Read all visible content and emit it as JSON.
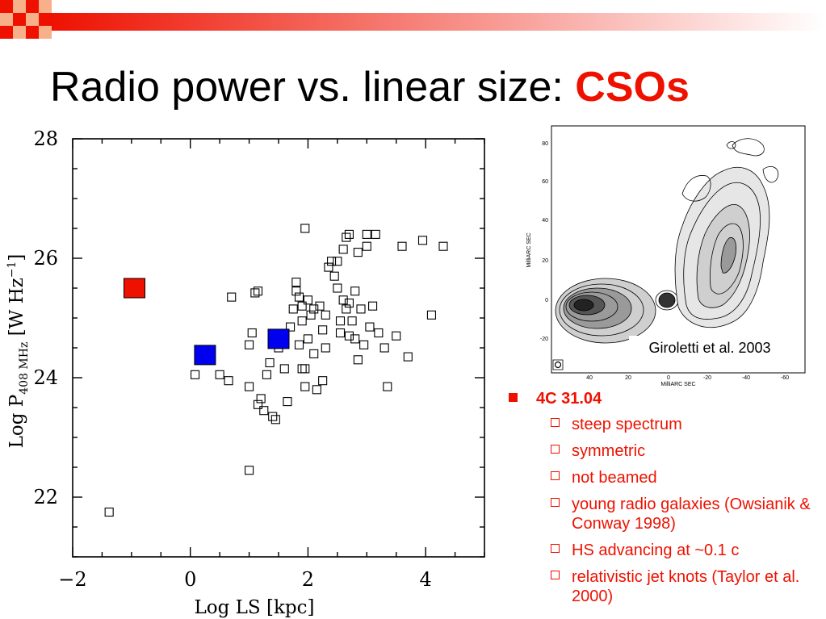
{
  "slide": {
    "title_main": "Radio power vs. linear size: ",
    "title_accent": "CSOs"
  },
  "colors": {
    "accent": "#ee1100",
    "red_marker": "#ee1100",
    "blue_marker": "#0000ee"
  },
  "chart_data": {
    "type": "scatter",
    "title": "",
    "xlabel": "Log LS [kpc]",
    "ylabel": "Log P",
    "ylabel_sub": "408 MHz",
    "ylabel_units": "[W Hz",
    "ylabel_units_sup": "−1",
    "ylabel_units_end": "]",
    "xlim": [
      -2,
      5
    ],
    "ylim": [
      21,
      28
    ],
    "xticks": [
      -2,
      0,
      2,
      4
    ],
    "xtick_labels": [
      "−2",
      "0",
      "2",
      "4"
    ],
    "yticks": [
      22,
      24,
      26,
      28
    ],
    "ytick_labels": [
      "22",
      "24",
      "26",
      "28"
    ],
    "grid": false,
    "series": [
      {
        "marker": "open-square",
        "points": [
          [
            -1.38,
            21.75
          ],
          [
            0.08,
            24.05
          ],
          [
            0.5,
            24.05
          ],
          [
            0.65,
            23.95
          ],
          [
            0.7,
            25.35
          ],
          [
            1.0,
            23.85
          ],
          [
            1.0,
            22.45
          ],
          [
            1.0,
            24.55
          ],
          [
            1.05,
            24.75
          ],
          [
            1.1,
            25.42
          ],
          [
            1.15,
            25.45
          ],
          [
            1.15,
            23.55
          ],
          [
            1.2,
            23.65
          ],
          [
            1.25,
            23.45
          ],
          [
            1.3,
            24.05
          ],
          [
            1.35,
            24.25
          ],
          [
            1.4,
            23.35
          ],
          [
            1.45,
            23.3
          ],
          [
            1.5,
            24.5
          ],
          [
            1.55,
            24.65
          ],
          [
            1.6,
            24.15
          ],
          [
            1.65,
            23.6
          ],
          [
            1.7,
            24.85
          ],
          [
            1.75,
            25.15
          ],
          [
            1.8,
            25.6
          ],
          [
            1.8,
            25.45
          ],
          [
            1.85,
            25.35
          ],
          [
            1.85,
            24.55
          ],
          [
            1.9,
            25.2
          ],
          [
            1.9,
            24.95
          ],
          [
            1.9,
            24.15
          ],
          [
            1.95,
            23.85
          ],
          [
            1.95,
            24.15
          ],
          [
            2.0,
            25.3
          ],
          [
            2.0,
            24.65
          ],
          [
            2.05,
            25.05
          ],
          [
            2.1,
            25.15
          ],
          [
            2.1,
            24.4
          ],
          [
            2.15,
            23.8
          ],
          [
            2.2,
            25.2
          ],
          [
            2.25,
            24.8
          ],
          [
            2.3,
            25.05
          ],
          [
            2.3,
            24.5
          ],
          [
            2.35,
            25.85
          ],
          [
            2.4,
            25.95
          ],
          [
            2.45,
            25.7
          ],
          [
            2.5,
            25.95
          ],
          [
            2.5,
            25.5
          ],
          [
            2.55,
            24.95
          ],
          [
            2.55,
            24.75
          ],
          [
            2.6,
            25.3
          ],
          [
            2.6,
            26.15
          ],
          [
            2.65,
            26.35
          ],
          [
            2.65,
            25.15
          ],
          [
            2.7,
            26.4
          ],
          [
            2.7,
            25.25
          ],
          [
            2.7,
            24.7
          ],
          [
            2.75,
            24.95
          ],
          [
            2.8,
            25.45
          ],
          [
            2.8,
            24.65
          ],
          [
            2.85,
            26.1
          ],
          [
            2.85,
            24.3
          ],
          [
            2.9,
            25.15
          ],
          [
            2.95,
            24.55
          ],
          [
            3.0,
            26.2
          ],
          [
            3.0,
            26.4
          ],
          [
            3.05,
            24.85
          ],
          [
            3.1,
            25.2
          ],
          [
            3.15,
            26.4
          ],
          [
            3.2,
            24.75
          ],
          [
            3.3,
            24.5
          ],
          [
            3.35,
            23.85
          ],
          [
            3.5,
            24.7
          ],
          [
            3.6,
            26.2
          ],
          [
            3.7,
            24.35
          ],
          [
            3.95,
            26.3
          ],
          [
            1.95,
            26.5
          ],
          [
            4.1,
            25.05
          ],
          [
            4.3,
            26.2
          ],
          [
            2.25,
            23.95
          ]
        ]
      },
      {
        "marker": "filled-square",
        "color": "red",
        "points": [
          [
            -0.95,
            25.5
          ]
        ]
      },
      {
        "marker": "filled-square",
        "color": "blue",
        "points": [
          [
            0.25,
            24.38
          ],
          [
            1.5,
            24.65
          ]
        ]
      }
    ]
  },
  "inset_image": {
    "caption": "Giroletti et al. 2003",
    "xlabel": "MilliARC SEC",
    "ylabel": "MilliARC SEC",
    "xtick_labels": [
      "40",
      "20",
      "0",
      "-20",
      "-40",
      "-60"
    ],
    "ytick_labels": [
      "80",
      "60",
      "40",
      "20",
      "0",
      "-20"
    ]
  },
  "bullets": {
    "heading": "4C 31.04",
    "items": [
      {
        "text": "steep spectrum"
      },
      {
        "text": "symmetric"
      },
      {
        "text": "not beamed"
      },
      {
        "text": "young radio galaxies (Owsianik & Conway 1998)"
      },
      {
        "text": "HS advancing at ~0.1 c"
      },
      {
        "text": "relativistic jet knots (Taylor et al. 2000)"
      }
    ]
  }
}
